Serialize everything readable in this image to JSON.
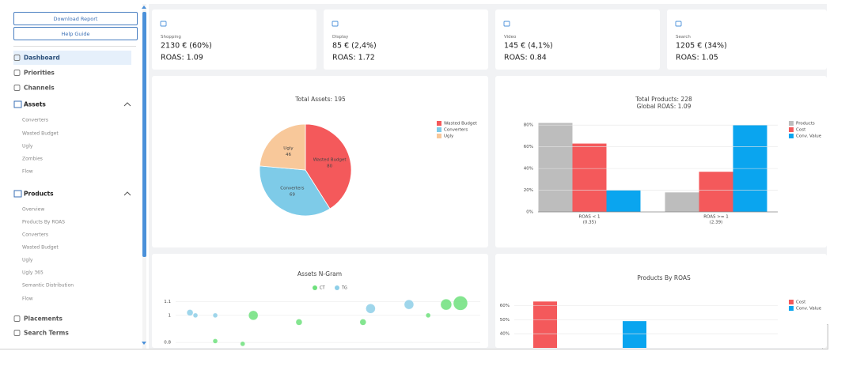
{
  "sidebar": {
    "download_button": "Download Report",
    "help_button": "Help Guide",
    "menu": [
      "Dashboard",
      "Priorities",
      "Channels"
    ],
    "sections": [
      {
        "title": "Assets",
        "items": [
          "Converters",
          "Wasted Budget",
          "Ugly",
          "Zombies",
          "Flow"
        ]
      },
      {
        "title": "Products",
        "items": [
          "Overview",
          "Products By ROAS",
          "Converters",
          "Wasted Budget",
          "Ugly",
          "Ugly 365",
          "Semantic Distribution",
          "Flow"
        ]
      }
    ],
    "footer_menu": [
      "Placements",
      "Search Terms"
    ]
  },
  "kpis": [
    {
      "label": "Shopping",
      "value": "2130 € (60%)",
      "roas": "ROAS: 1.09"
    },
    {
      "label": "Display",
      "value": "85 € (2,4%)",
      "roas": "ROAS: 1.72"
    },
    {
      "label": "Video",
      "value": "145 € (4,1%)",
      "roas": "ROAS: 0.84"
    },
    {
      "label": "Search",
      "value": "1205 € (34%)",
      "roas": "ROAS: 1.05"
    }
  ],
  "chart_data": [
    {
      "type": "pie",
      "title": "Total Assets: 195",
      "categories": [
        "Wasted Budget",
        "Converters",
        "Ugly"
      ],
      "values": [
        80,
        69,
        46
      ],
      "colors": [
        "#f4595b",
        "#7ecbe8",
        "#f8c89a"
      ],
      "legend": "top-right"
    },
    {
      "type": "bar",
      "title": "Total Products: 228",
      "subtitle": "Global ROAS: 1.09",
      "categories": [
        "ROAS < 1",
        "ROAS >= 1"
      ],
      "category_notes": [
        "(0.35)",
        "(2.39)"
      ],
      "series": [
        {
          "name": "Products",
          "color": "#bdbdbd",
          "values": [
            82,
            18
          ]
        },
        {
          "name": "Cost",
          "color": "#f4595b",
          "values": [
            63,
            37
          ]
        },
        {
          "name": "Conv. Value",
          "color": "#0aa5ef",
          "values": [
            20,
            80
          ]
        }
      ],
      "ylim": [
        0,
        86
      ],
      "yticks": [
        {
          "value": 0,
          "label": "0%"
        },
        {
          "value": 20,
          "label": "20%"
        },
        {
          "value": 40,
          "label": "40%"
        },
        {
          "value": 60,
          "label": "60%"
        },
        {
          "value": 80,
          "label": "80%"
        }
      ],
      "grid": true,
      "legend": "top-right"
    },
    {
      "type": "scatter",
      "title": "Assets N-Gram",
      "series": [
        {
          "name": "CT",
          "color": "#6ee07c",
          "x": [
            25.5,
            40.5,
            61.5,
            88.8,
            93.5,
            82.9,
            13,
            22
          ],
          "values": [
            1.0,
            0.95,
            0.95,
            1.08,
            1.09,
            1.0,
            0.81,
            0.79
          ],
          "sizes": [
            6,
            4,
            4,
            7,
            9,
            3,
            3,
            3
          ]
        },
        {
          "name": "TG",
          "color": "#8ecfe8",
          "x": [
            4.7,
            6.5,
            13,
            64,
            76.6
          ],
          "values": [
            1.02,
            1.0,
            1.0,
            1.05,
            1.08
          ],
          "sizes": [
            4,
            3,
            3,
            6,
            6
          ]
        }
      ],
      "xlim": [
        0,
        100
      ],
      "ylim": [
        0.76,
        1.18
      ],
      "yticks": [
        0.8,
        1,
        1.1
      ],
      "grid": true,
      "legend": "top-center"
    },
    {
      "type": "bar",
      "title": "Products By ROAS",
      "categories": [
        null
      ],
      "series": [
        {
          "name": "Cost",
          "color": "#f4595b",
          "values": [
            63
          ]
        },
        {
          "name": "Conv. Value",
          "color": "#0aa5ef",
          "values": [
            49
          ]
        }
      ],
      "ylim": [
        0,
        66
      ],
      "yticks": [
        {
          "value": 40,
          "label": "40%"
        },
        {
          "value": 50,
          "label": "50%"
        },
        {
          "value": 60,
          "label": "60%"
        }
      ],
      "grid": true,
      "legend": "top-right"
    }
  ]
}
